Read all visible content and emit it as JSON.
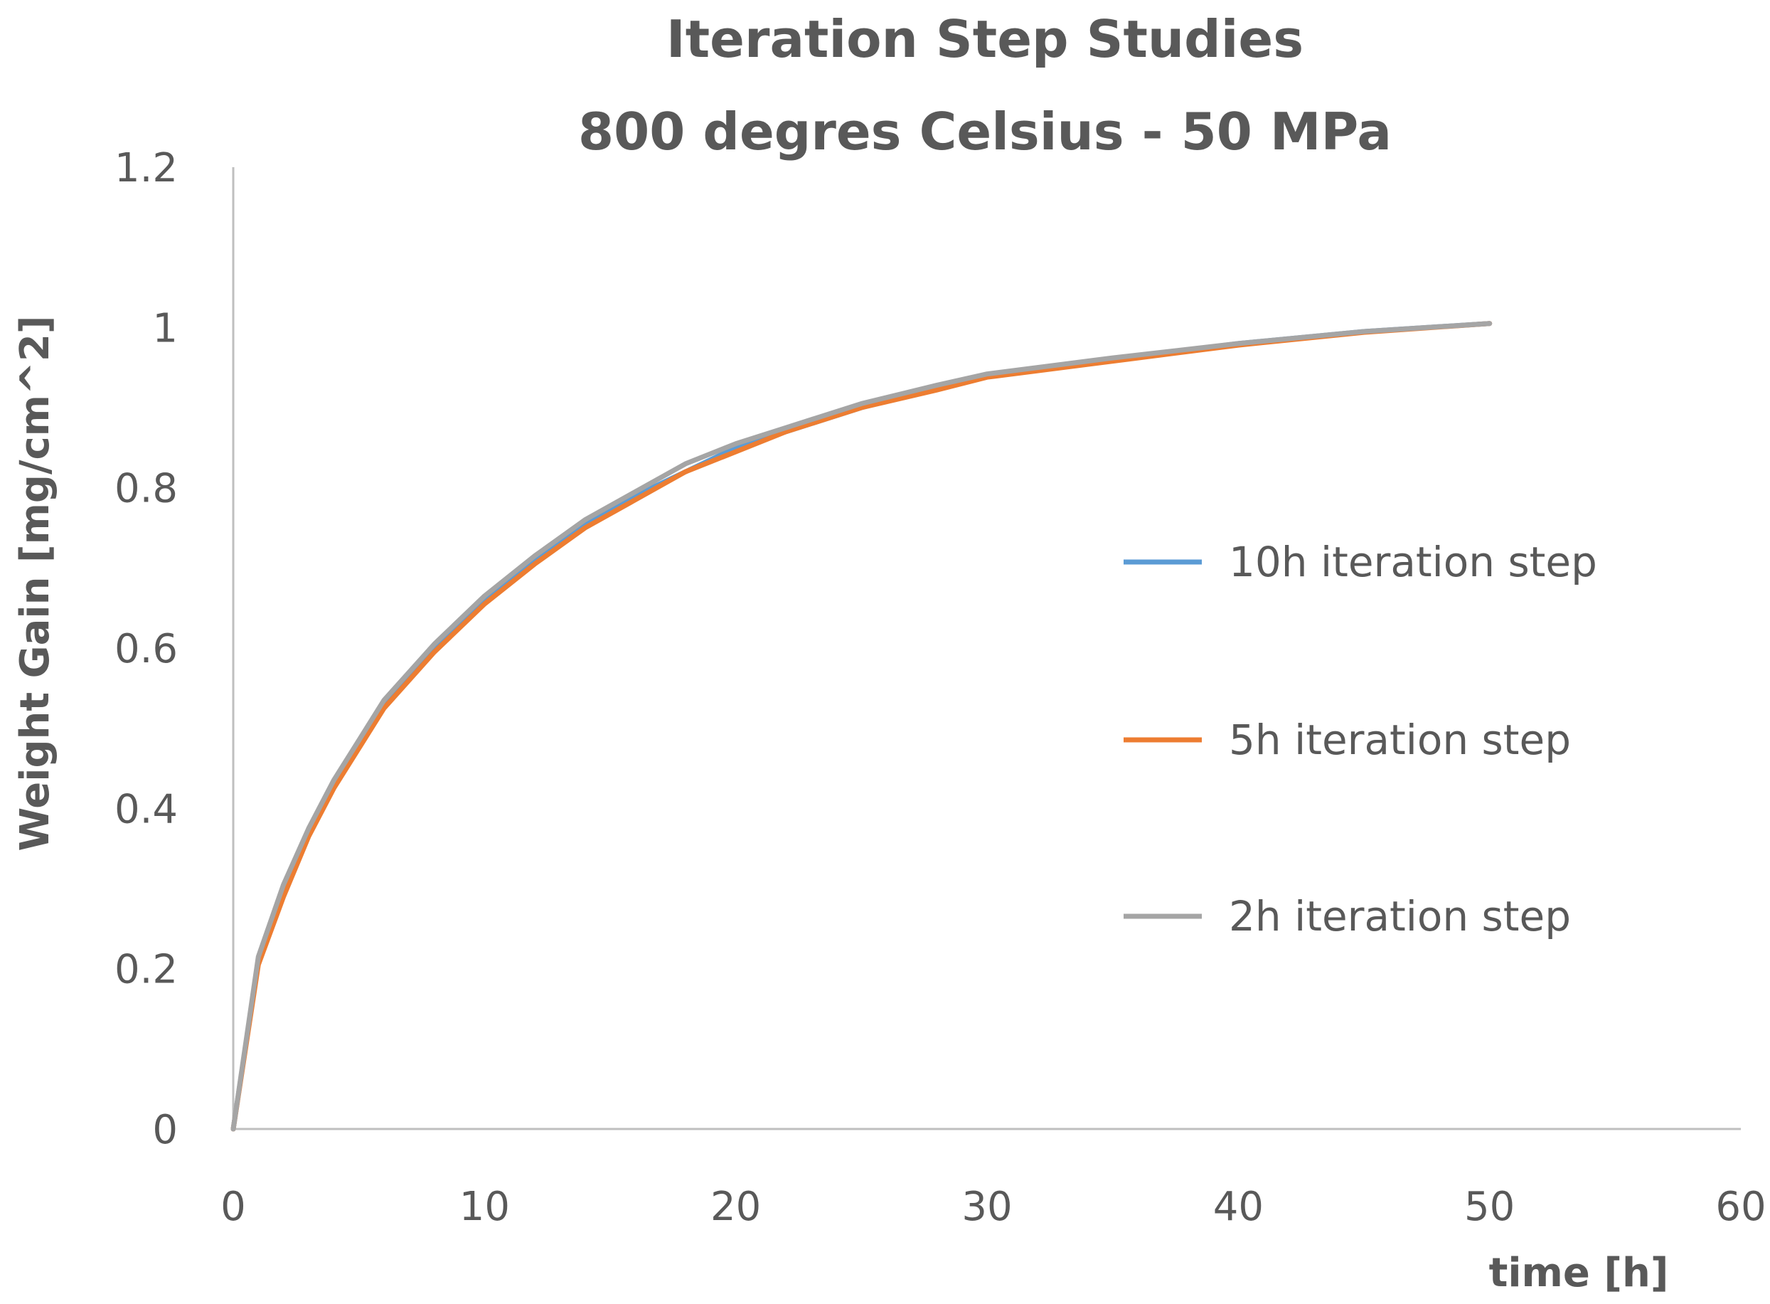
{
  "chart_data": {
    "type": "line",
    "title": "Iteration Step Studies",
    "subtitle": "800 degres Celsius - 50 MPa",
    "xlabel": "time [h]",
    "ylabel": "Weight Gain [mg/cm^2]",
    "xlim": [
      0,
      60
    ],
    "ylim": [
      0,
      1.2
    ],
    "x_ticks": [
      0,
      10,
      20,
      30,
      40,
      50,
      60
    ],
    "y_ticks": [
      0,
      0.2,
      0.4,
      0.6,
      0.8,
      1,
      1.2
    ],
    "x_tick_labels": [
      "0",
      "10",
      "20",
      "30",
      "40",
      "50",
      "60"
    ],
    "y_tick_labels": [
      "0",
      "0.2",
      "0.4",
      "0.6",
      "0.8",
      "1",
      "1.2"
    ],
    "grid": false,
    "legend_position": "right",
    "series": [
      {
        "name": "10h iteration step",
        "color": "#5B9BD5",
        "x": [
          0,
          1,
          2,
          3,
          4,
          5,
          6,
          8,
          10,
          12,
          14,
          16,
          18,
          20,
          22,
          25,
          28,
          30,
          35,
          40,
          45,
          50
        ],
        "y": [
          0,
          0.21,
          0.3,
          0.37,
          0.43,
          0.48,
          0.53,
          0.6,
          0.66,
          0.71,
          0.755,
          0.79,
          0.82,
          0.85,
          0.87,
          0.9,
          0.925,
          0.94,
          0.96,
          0.98,
          0.995,
          1.005
        ]
      },
      {
        "name": "5h iteration step",
        "color": "#ED7D31",
        "x": [
          0,
          1,
          2,
          3,
          4,
          5,
          6,
          8,
          10,
          12,
          14,
          16,
          18,
          20,
          22,
          25,
          28,
          30,
          35,
          40,
          45,
          50
        ],
        "y": [
          0,
          0.205,
          0.29,
          0.365,
          0.425,
          0.475,
          0.525,
          0.595,
          0.655,
          0.705,
          0.75,
          0.785,
          0.82,
          0.845,
          0.87,
          0.9,
          0.922,
          0.938,
          0.958,
          0.978,
          0.994,
          1.005
        ]
      },
      {
        "name": "2h iteration step",
        "color": "#A5A5A5",
        "x": [
          0,
          1,
          2,
          3,
          4,
          5,
          6,
          8,
          10,
          12,
          14,
          16,
          18,
          20,
          22,
          25,
          28,
          30,
          35,
          40,
          45,
          50
        ],
        "y": [
          0,
          0.215,
          0.305,
          0.375,
          0.435,
          0.485,
          0.535,
          0.605,
          0.665,
          0.715,
          0.76,
          0.795,
          0.83,
          0.855,
          0.875,
          0.905,
          0.928,
          0.942,
          0.962,
          0.98,
          0.995,
          1.005
        ]
      }
    ]
  }
}
